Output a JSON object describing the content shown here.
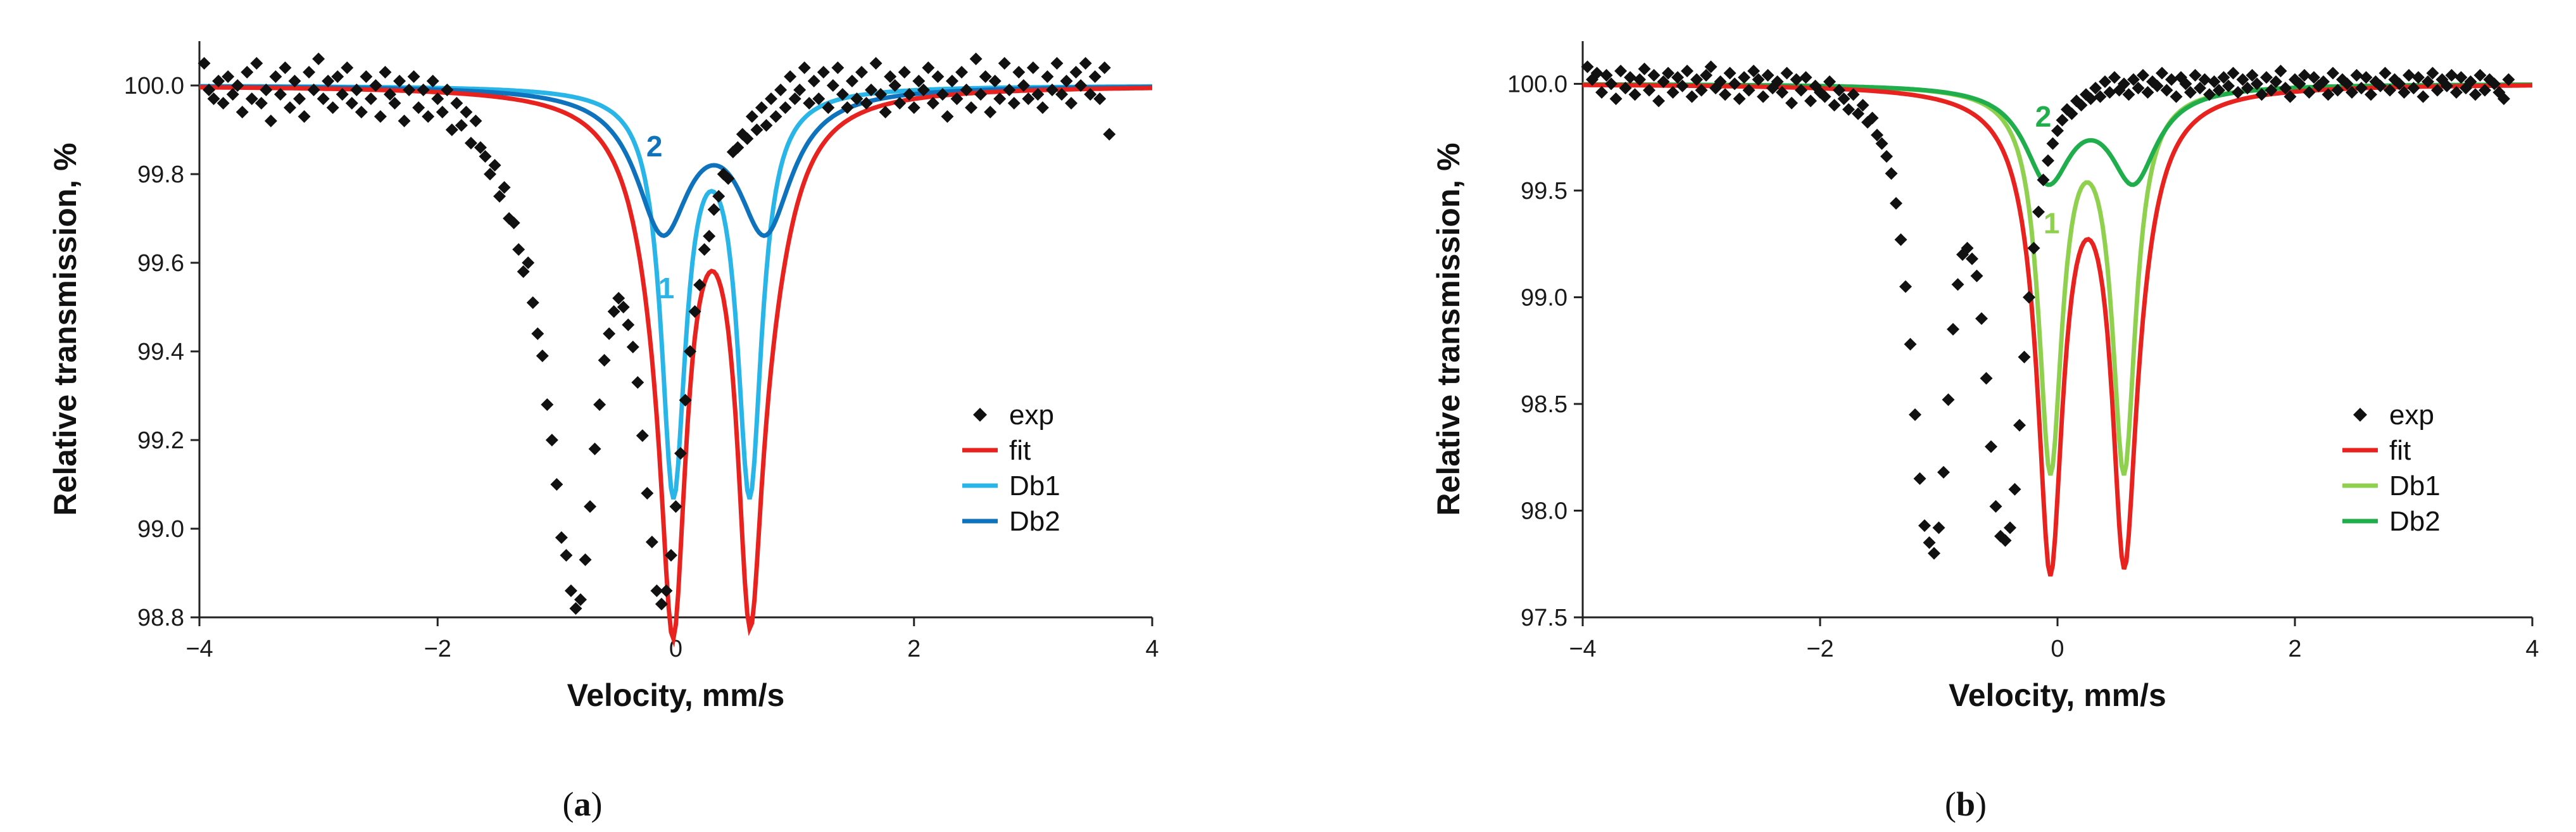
{
  "chart_data": [
    {
      "panel": "(a)",
      "caption_letter": "a",
      "type": "scatter",
      "xlabel": "Velocity, mm/s",
      "ylabel": "Relative transmission, %",
      "xlim": [
        -4,
        4
      ],
      "ylim": [
        98.8,
        100.1
      ],
      "xticks": [
        -4,
        -2,
        0,
        2,
        4
      ],
      "xtick_labels": [
        "−4",
        "−2",
        "0",
        "2",
        "4"
      ],
      "yticks": [
        98.8,
        99.0,
        99.2,
        99.4,
        99.6,
        99.8,
        100.0
      ],
      "ytick_labels": [
        "98.8",
        "99.0",
        "99.2",
        "99.4",
        "99.6",
        "99.8",
        "100.0"
      ],
      "grid": false,
      "legend": {
        "position": "lower-right",
        "entries": [
          {
            "label": "exp",
            "style": "marker",
            "color": "#111111"
          },
          {
            "label": "fit",
            "style": "line",
            "color": "#e8231f"
          },
          {
            "label": "Db1",
            "style": "line",
            "color": "#29b5e8"
          },
          {
            "label": "Db2",
            "style": "line",
            "color": "#0e72bd"
          }
        ]
      },
      "components": [
        {
          "name": "Db1",
          "annotation": "1",
          "color": "#29b5e8",
          "center": 0.3,
          "split": 0.64,
          "gamma": 0.25,
          "depth": 0.9,
          "annot_at": [
            -0.08,
            99.52
          ]
        },
        {
          "name": "Db2",
          "annotation": "2",
          "color": "#0e72bd",
          "center": 0.32,
          "split": 0.86,
          "gamma": 0.55,
          "depth": 0.31,
          "annot_at": [
            -0.18,
            99.84
          ]
        }
      ],
      "exp": {
        "x_start": -3.96,
        "x_step": 0.04,
        "y": [
          100.05,
          99.99,
          99.97,
          100.01,
          99.96,
          100.02,
          99.98,
          100.0,
          99.94,
          100.03,
          99.97,
          100.05,
          99.96,
          99.99,
          99.92,
          100.02,
          99.98,
          100.04,
          99.95,
          100.01,
          99.97,
          99.93,
          100.03,
          99.99,
          100.06,
          99.97,
          100.01,
          99.95,
          100.02,
          99.98,
          100.04,
          99.96,
          99.99,
          99.94,
          100.02,
          99.97,
          100.0,
          99.93,
          100.03,
          99.98,
          99.96,
          100.01,
          99.92,
          99.99,
          100.02,
          99.95,
          99.99,
          99.93,
          100.01,
          99.97,
          99.94,
          99.99,
          99.9,
          99.96,
          99.91,
          99.94,
          99.87,
          99.92,
          99.86,
          99.84,
          99.8,
          99.82,
          99.75,
          99.77,
          99.7,
          99.69,
          99.63,
          99.58,
          99.6,
          99.51,
          99.44,
          99.39,
          99.28,
          99.2,
          99.1,
          98.98,
          98.94,
          98.86,
          98.82,
          98.84,
          98.93,
          99.05,
          99.18,
          99.28,
          99.38,
          99.44,
          99.49,
          99.52,
          99.5,
          99.46,
          99.41,
          99.33,
          99.21,
          99.08,
          98.97,
          98.86,
          98.83,
          98.86,
          98.94,
          99.05,
          99.17,
          99.29,
          99.4,
          99.49,
          99.55,
          99.63,
          99.66,
          99.72,
          99.75,
          99.8,
          99.79,
          99.85,
          99.86,
          99.89,
          99.88,
          99.93,
          99.9,
          99.95,
          99.91,
          99.97,
          99.93,
          99.99,
          99.95,
          100.02,
          99.97,
          99.99,
          100.04,
          99.96,
          100.01,
          99.97,
          100.03,
          99.95,
          100.0,
          100.04,
          99.98,
          99.95,
          100.01,
          99.97,
          100.03,
          99.96,
          99.99,
          100.05,
          99.98,
          99.94,
          100.02,
          100.0,
          99.96,
          100.03,
          99.98,
          99.95,
          100.01,
          99.99,
          100.04,
          99.96,
          100.02,
          99.98,
          99.93,
          100.01,
          99.97,
          100.03,
          99.99,
          99.95,
          100.06,
          99.98,
          100.02,
          99.94,
          100.01,
          99.97,
          100.05,
          99.99,
          99.96,
          100.03,
          100.0,
          99.97,
          100.04,
          99.98,
          99.95,
          100.02,
          99.99,
          100.05,
          99.98,
          100.01,
          99.96,
          100.03,
          100.0,
          100.05,
          99.98,
          100.02,
          99.97,
          100.04,
          99.89
        ]
      }
    },
    {
      "panel": "(b)",
      "caption_letter": "b",
      "type": "scatter",
      "xlabel": "Velocity, mm/s",
      "ylabel": "Relative transmission, %",
      "xlim": [
        -4,
        4
      ],
      "ylim": [
        97.5,
        100.2
      ],
      "xticks": [
        -4,
        -2,
        0,
        2,
        4
      ],
      "xtick_labels": [
        "−4",
        "−2",
        "0",
        "2",
        "4"
      ],
      "yticks": [
        97.5,
        98.0,
        98.5,
        99.0,
        99.5,
        100.0
      ],
      "ytick_labels": [
        "97.5",
        "98.0",
        "98.5",
        "99.0",
        "99.5",
        "100.0"
      ],
      "grid": false,
      "legend": {
        "position": "lower-right",
        "entries": [
          {
            "label": "exp",
            "style": "marker",
            "color": "#111111"
          },
          {
            "label": "fit",
            "style": "line",
            "color": "#e8231f"
          },
          {
            "label": "Db1",
            "style": "line",
            "color": "#8fd14f"
          },
          {
            "label": "Db2",
            "style": "line",
            "color": "#1fae4b"
          }
        ]
      },
      "components": [
        {
          "name": "Db1",
          "annotation": "1",
          "color": "#8fd14f",
          "center": 0.25,
          "split": 0.62,
          "gamma": 0.24,
          "depth": 1.77,
          "annot_at": [
            -0.05,
            99.3
          ]
        },
        {
          "name": "Db2",
          "annotation": "2",
          "color": "#1fae4b",
          "center": 0.28,
          "split": 0.72,
          "gamma": 0.48,
          "depth": 0.43,
          "annot_at": [
            -0.12,
            99.8
          ]
        }
      ],
      "exp": {
        "x_start": -3.96,
        "x_step": 0.04,
        "y": [
          100.08,
          100.02,
          100.05,
          99.96,
          100.04,
          100.0,
          99.93,
          100.06,
          99.98,
          100.03,
          99.95,
          100.02,
          100.07,
          99.97,
          100.04,
          99.92,
          100.01,
          100.05,
          99.96,
          100.03,
          99.99,
          100.06,
          99.94,
          100.02,
          99.97,
          100.04,
          100.08,
          99.98,
          100.01,
          99.95,
          100.05,
          100.0,
          99.93,
          100.03,
          99.97,
          100.06,
          100.02,
          99.94,
          100.04,
          99.98,
          100.01,
          99.96,
          100.05,
          99.91,
          100.02,
          99.97,
          100.03,
          99.92,
          99.99,
          99.96,
          99.94,
          100.01,
          99.9,
          99.97,
          99.93,
          99.88,
          99.95,
          99.86,
          99.9,
          99.82,
          99.84,
          99.76,
          99.72,
          99.66,
          99.58,
          99.44,
          99.27,
          99.05,
          98.78,
          98.45,
          98.15,
          97.93,
          97.85,
          97.8,
          97.92,
          98.18,
          98.52,
          98.85,
          99.06,
          99.2,
          99.23,
          99.18,
          99.1,
          98.9,
          98.62,
          98.3,
          98.02,
          97.88,
          97.86,
          97.92,
          98.1,
          98.4,
          98.72,
          99.0,
          99.23,
          99.4,
          99.55,
          99.64,
          99.72,
          99.78,
          99.83,
          99.88,
          99.86,
          99.92,
          99.9,
          99.95,
          99.93,
          99.98,
          99.94,
          100.01,
          99.96,
          100.03,
          99.97,
          100.0,
          99.95,
          100.02,
          99.98,
          100.04,
          99.96,
          100.01,
          99.99,
          100.05,
          99.97,
          100.02,
          99.94,
          100.03,
          100.0,
          99.96,
          100.04,
          99.98,
          100.02,
          99.95,
          100.01,
          99.97,
          100.03,
          99.99,
          100.05,
          99.96,
          100.02,
          99.98,
          100.04,
          100.0,
          99.95,
          100.03,
          99.97,
          100.01,
          100.06,
          99.98,
          99.94,
          100.02,
          100.0,
          100.04,
          99.96,
          100.03,
          99.99,
          100.01,
          99.95,
          100.05,
          99.97,
          100.02,
          100.0,
          99.96,
          100.04,
          99.98,
          100.03,
          99.95,
          100.01,
          99.99,
          100.05,
          99.97,
          100.02,
          100.0,
          99.96,
          100.04,
          99.98,
          100.03,
          99.94,
          100.01,
          100.05,
          99.97,
          100.02,
          99.99,
          100.04,
          99.96,
          100.03,
          99.98,
          100.01,
          99.95,
          100.04,
          99.97,
          100.02,
          100.0,
          99.96,
          99.93,
          100.02
        ]
      }
    }
  ]
}
